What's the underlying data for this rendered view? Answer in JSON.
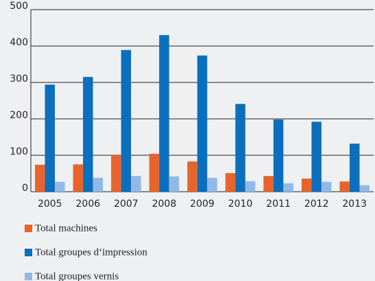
{
  "chart_data": {
    "type": "bar",
    "categories": [
      "2005",
      "2006",
      "2007",
      "2008",
      "2009",
      "2010",
      "2011",
      "2012",
      "2013"
    ],
    "series": [
      {
        "name": "Total machines",
        "color": "#e8642c",
        "values": [
          74,
          75,
          100,
          104,
          83,
          51,
          43,
          36,
          28
        ]
      },
      {
        "name": "Total groupes d‘impression",
        "color": "#0b6fbd",
        "values": [
          294,
          315,
          389,
          430,
          374,
          241,
          198,
          192,
          132
        ]
      },
      {
        "name": "Total groupes vernis",
        "color": "#91b9e6",
        "values": [
          27,
          38,
          43,
          42,
          38,
          29,
          23,
          27,
          18
        ]
      }
    ],
    "ylim": [
      0,
      500
    ],
    "yticks": [
      0,
      100,
      200,
      300,
      400,
      500
    ],
    "grid": true
  }
}
